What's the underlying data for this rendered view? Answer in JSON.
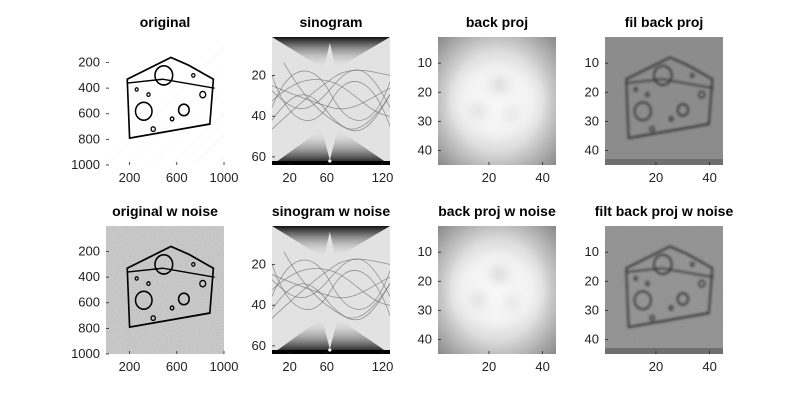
{
  "figure": {
    "background": "#ffffff",
    "colormap": "gray"
  },
  "chart_data": [
    {
      "type": "image",
      "title": "original",
      "content": "binary cheese-wedge outline with circular holes, black lines on white",
      "x_ticks": [
        "200",
        "600",
        "1000"
      ],
      "y_ticks": [
        "1000",
        "800",
        "600",
        "400",
        "200"
      ],
      "xlim": [
        1,
        1000
      ],
      "ylim": [
        1,
        1000
      ],
      "noise": false
    },
    {
      "type": "image",
      "title": "sinogram",
      "content": "sinogram of the cheese image, gray sinusoidal traces with dark hourglass regions at top and bottom",
      "x_ticks": [
        "20",
        "60",
        "120"
      ],
      "y_ticks": [
        "60",
        "40",
        "20"
      ],
      "xlim": [
        1,
        128
      ],
      "ylim": [
        1,
        64
      ],
      "noise": false
    },
    {
      "type": "image",
      "title": "back proj",
      "content": "blurred unfiltered back projection, light gray blob",
      "x_ticks": [
        "20",
        "40"
      ],
      "y_ticks": [
        "40",
        "30",
        "20",
        "10"
      ],
      "xlim": [
        1,
        45
      ],
      "ylim": [
        1,
        45
      ],
      "noise": false
    },
    {
      "type": "image",
      "title": "fil back proj",
      "content": "filtered back projection, gray background with dark cheese outline and holes",
      "x_ticks": [
        "20",
        "40"
      ],
      "y_ticks": [
        "40",
        "30",
        "20",
        "10"
      ],
      "xlim": [
        1,
        45
      ],
      "ylim": [
        1,
        45
      ],
      "noise": false
    },
    {
      "type": "image",
      "title": "original w noise",
      "content": "cheese outline image with speckle noise on gray background",
      "x_ticks": [
        "200",
        "600",
        "1000"
      ],
      "y_ticks": [
        "1000",
        "800",
        "600",
        "400",
        "200"
      ],
      "xlim": [
        1,
        1000
      ],
      "ylim": [
        1,
        1000
      ],
      "noise": true
    },
    {
      "type": "image",
      "title": "sinogram w noise",
      "content": "sinogram of the noisy image",
      "x_ticks": [
        "20",
        "60",
        "120"
      ],
      "y_ticks": [
        "60",
        "40",
        "20"
      ],
      "xlim": [
        1,
        128
      ],
      "ylim": [
        1,
        64
      ],
      "noise": true
    },
    {
      "type": "image",
      "title": "back proj w noise",
      "content": "blurred unfiltered back projection of noisy data",
      "x_ticks": [
        "20",
        "40"
      ],
      "y_ticks": [
        "40",
        "30",
        "20",
        "10"
      ],
      "xlim": [
        1,
        45
      ],
      "ylim": [
        1,
        45
      ],
      "noise": true
    },
    {
      "type": "image",
      "title": "filt back proj w noise",
      "content": "filtered back projection of noisy data, dark outline on gray",
      "x_ticks": [
        "20",
        "40"
      ],
      "y_ticks": [
        "40",
        "30",
        "20",
        "10"
      ],
      "xlim": [
        1,
        45
      ],
      "ylim": [
        1,
        45
      ],
      "noise": true
    }
  ]
}
